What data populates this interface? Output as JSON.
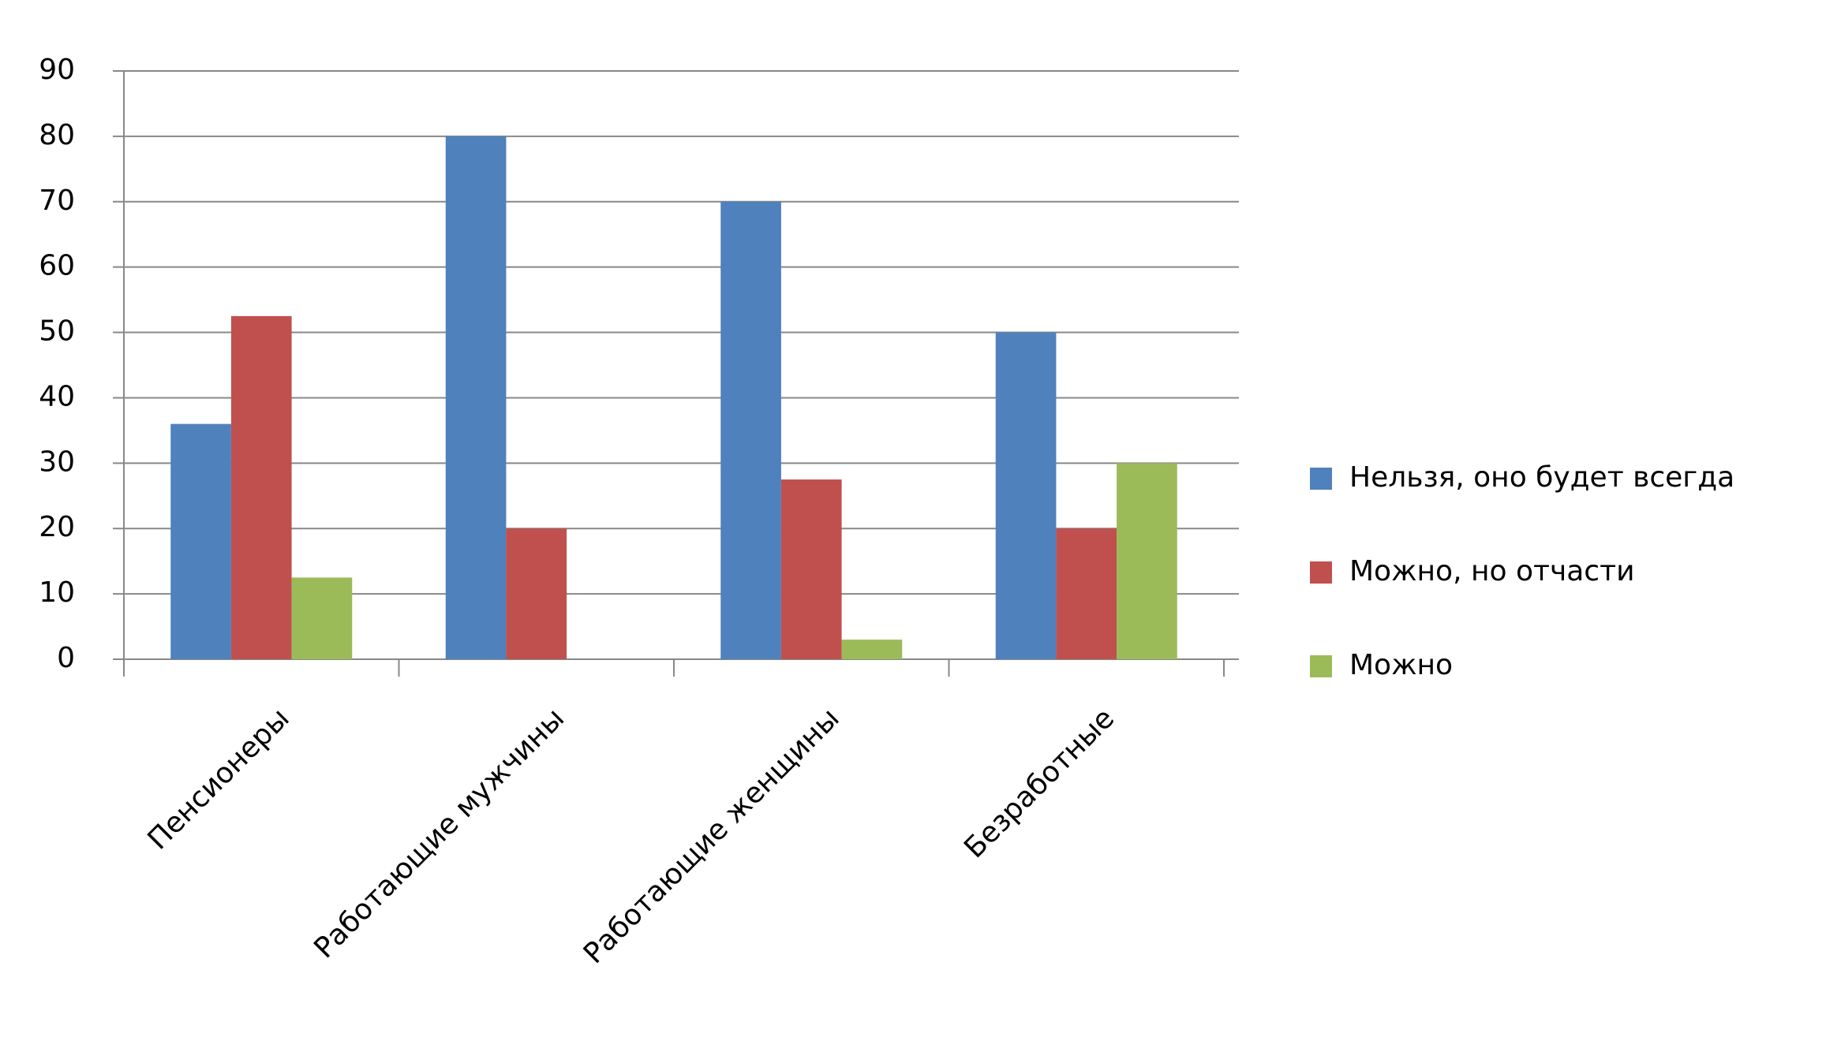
{
  "chart_data": {
    "type": "bar",
    "categories": [
      "Пенсионеры",
      "Работающие мужчины",
      "Работающие женщины",
      "Безработные"
    ],
    "series": [
      {
        "name": "Нельзя, оно будет всегда",
        "color": "#4f81bd",
        "values": [
          36,
          80,
          70,
          50
        ]
      },
      {
        "name": "Можно, но отчасти",
        "color": "#c0504d",
        "values": [
          52.5,
          20,
          27.5,
          20
        ]
      },
      {
        "name": "Можно",
        "color": "#9bbb59",
        "values": [
          12.5,
          null,
          3,
          30
        ]
      }
    ],
    "ylim": [
      0,
      90
    ],
    "yticks": [
      0,
      10,
      20,
      30,
      40,
      50,
      60,
      70,
      80,
      90
    ],
    "grid": true,
    "legend": "right"
  }
}
